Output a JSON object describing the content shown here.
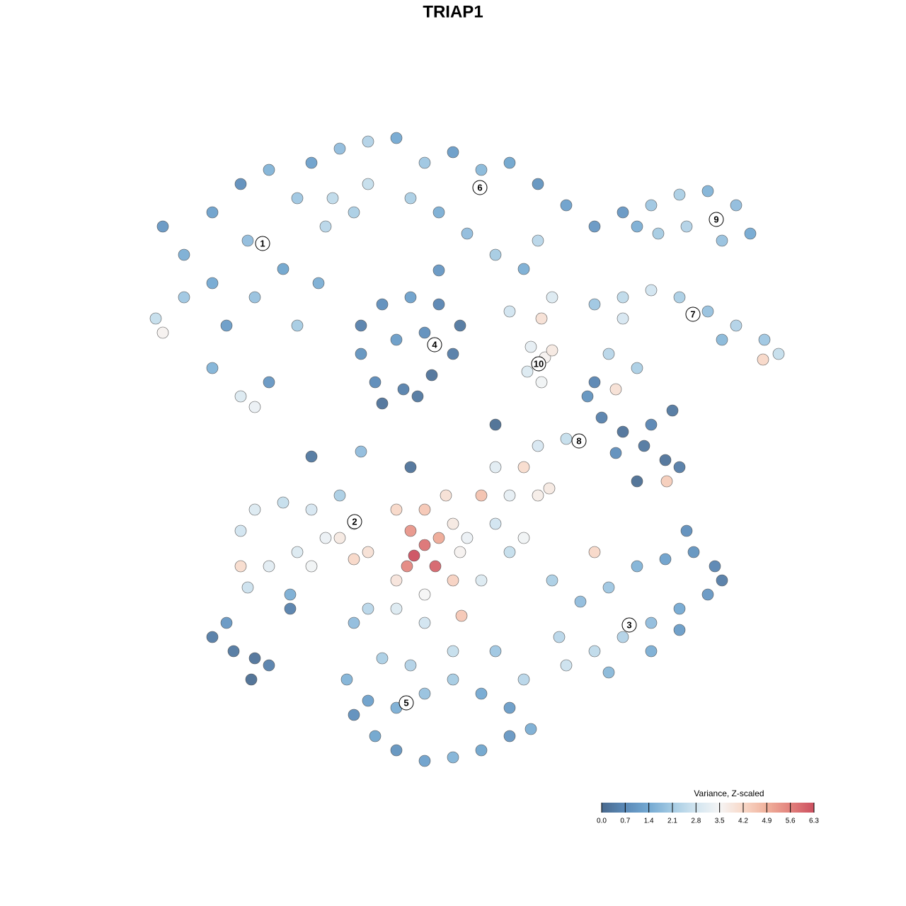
{
  "chart_data": {
    "type": "scatter",
    "title": "TRIAP1",
    "xlim": [
      0,
      1280
    ],
    "ylim": [
      1280,
      0
    ],
    "x": [
      230,
      260,
      300,
      340,
      380,
      420,
      460,
      500,
      350,
      300,
      260,
      220,
      320,
      360,
      400,
      300,
      340,
      360,
      380,
      420,
      450,
      230,
      440,
      480,
      520,
      560,
      600,
      640,
      680,
      720,
      760,
      800,
      840,
      520,
      580,
      620,
      660,
      700,
      760,
      470,
      880,
      920,
      960,
      1000,
      1040,
      1060,
      1020,
      970,
      930,
      900,
      840,
      880,
      920,
      960,
      1000,
      1040,
      1080,
      1100,
      1020,
      880,
      860,
      900,
      780,
      720,
      1078,
      510,
      540,
      580,
      620,
      650,
      640,
      610,
      570,
      530,
      510,
      560,
      600,
      590,
      540,
      750,
      770,
      745,
      765,
      780,
      765,
      830,
      850,
      880,
      910,
      940,
      960,
      900,
      920,
      950,
      870,
      840,
      870,
      942,
      800,
      760,
      340,
      360,
      400,
      440,
      480,
      500,
      520,
      500,
      460,
      420,
      380,
      340,
      350,
      410,
      440,
      480,
      410,
      560,
      580,
      600,
      585,
      615,
      575,
      620,
      600,
      630,
      640,
      650,
      560,
      600,
      640,
      680,
      660,
      680,
      700,
      720,
      740,
      760,
      700,
      740,
      720,
      560,
      600,
      520,
      652,
      776,
      840,
      780,
      820,
      860,
      900,
      940,
      980,
      1010,
      1000,
      960,
      920,
      880,
      840,
      800,
      790,
      860,
      920,
      960,
      1020,
      970,
      490,
      520,
      560,
      600,
      640,
      680,
      720,
      750,
      720,
      680,
      640,
      600,
      560,
      530,
      500,
      580,
      640,
      700,
      540,
      500,
      740,
      300,
      330,
      360,
      355,
      380,
      320,
      440,
      510,
      580,
      700,
      620,
      740
    ],
    "y": [
      320,
      360,
      300,
      260,
      240,
      280,
      320,
      300,
      340,
      400,
      420,
      450,
      460,
      420,
      380,
      520,
      560,
      575,
      540,
      460,
      400,
      470,
      230,
      210,
      200,
      195,
      230,
      215,
      240,
      230,
      260,
      290,
      320,
      260,
      280,
      300,
      330,
      360,
      340,
      280,
      300,
      290,
      275,
      270,
      290,
      330,
      340,
      320,
      330,
      320,
      430,
      420,
      410,
      420,
      440,
      460,
      480,
      500,
      480,
      450,
      500,
      520,
      420,
      440,
      508,
      460,
      430,
      420,
      430,
      460,
      500,
      530,
      550,
      540,
      500,
      480,
      470,
      560,
      570,
      490,
      505,
      525,
      540,
      495,
      450,
      560,
      590,
      610,
      630,
      650,
      660,
      680,
      600,
      580,
      640,
      540,
      550,
      680,
      620,
      630,
      750,
      720,
      710,
      720,
      700,
      740,
      780,
      790,
      760,
      780,
      800,
      800,
      830,
      840,
      800,
      760,
      860,
      720,
      750,
      770,
      785,
      800,
      800,
      760,
      720,
      700,
      740,
      780,
      820,
      840,
      820,
      700,
      760,
      820,
      740,
      700,
      760,
      700,
      660,
      660,
      780,
      860,
      880,
      860,
      870,
      690,
      780,
      820,
      850,
      830,
      800,
      790,
      780,
      800,
      840,
      860,
      880,
      900,
      920,
      940,
      900,
      950,
      920,
      890,
      820,
      750,
      960,
      990,
      1000,
      980,
      960,
      980,
      1000,
      1030,
      1040,
      1060,
      1070,
      1075,
      1060,
      1040,
      1010,
      940,
      920,
      920,
      930,
      880,
      960,
      900,
      920,
      930,
      960,
      940,
      880,
      645,
      638,
      660,
      600,
      382,
      380
    ],
    "values": [
      1.0,
      1.5,
      1.2,
      0.8,
      1.6,
      2.0,
      2.4,
      2.2,
      1.8,
      1.4,
      2.0,
      2.6,
      1.1,
      1.9,
      1.3,
      1.6,
      3.0,
      3.3,
      1.0,
      2.1,
      1.5,
      3.6,
      1.2,
      1.8,
      2.3,
      1.4,
      2.0,
      1.1,
      1.7,
      1.3,
      0.9,
      1.2,
      1.0,
      2.6,
      2.2,
      1.5,
      1.8,
      2.1,
      2.4,
      2.5,
      1.0,
      2.0,
      2.2,
      1.6,
      1.8,
      1.4,
      1.9,
      2.3,
      2.1,
      1.5,
      2.0,
      2.5,
      2.8,
      2.2,
      1.9,
      2.3,
      2.0,
      2.6,
      1.7,
      2.9,
      2.4,
      2.2,
      3.0,
      2.8,
      4.2,
      0.5,
      0.8,
      1.2,
      0.6,
      0.3,
      0.4,
      0.2,
      0.5,
      0.7,
      0.9,
      1.1,
      0.8,
      0.3,
      0.2,
      3.2,
      3.6,
      3.0,
      3.4,
      3.8,
      4.0,
      0.9,
      0.5,
      0.2,
      0.3,
      0.2,
      0.4,
      0.1,
      0.6,
      0.3,
      0.8,
      0.6,
      4.0,
      4.4,
      2.6,
      2.9,
      2.8,
      3.0,
      2.6,
      2.9,
      2.2,
      3.2,
      4.0,
      4.2,
      3.3,
      3.0,
      3.1,
      4.1,
      2.7,
      1.5,
      3.4,
      3.8,
      0.5,
      4.2,
      5.3,
      5.8,
      6.3,
      6.0,
      5.5,
      5.0,
      4.5,
      4.0,
      3.8,
      3.6,
      3.9,
      3.5,
      4.3,
      4.6,
      3.3,
      3.0,
      2.8,
      3.2,
      3.4,
      3.7,
      3.1,
      4.1,
      2.6,
      3.0,
      2.8,
      2.4,
      4.5,
      3.8,
      4.2,
      2.2,
      1.8,
      2.0,
      1.6,
      1.2,
      0.9,
      0.6,
      1.0,
      1.4,
      1.8,
      2.3,
      2.5,
      2.7,
      2.4,
      1.7,
      1.5,
      1.1,
      0.4,
      0.8,
      1.6,
      1.2,
      1.5,
      1.9,
      2.1,
      1.4,
      1.1,
      1.5,
      1.0,
      1.3,
      1.6,
      1.2,
      0.9,
      1.3,
      0.8,
      2.3,
      2.6,
      2.0,
      2.2,
      1.8,
      2.4,
      0.4,
      0.3,
      0.2,
      0.1,
      0.5,
      1.0,
      0.3,
      1.8,
      0.2,
      0.1,
      1.0,
      1.5
    ],
    "annotations": [
      {
        "label": "1",
        "x": 371,
        "y": 344
      },
      {
        "label": "2",
        "x": 501,
        "y": 737
      },
      {
        "label": "3",
        "x": 889,
        "y": 883
      },
      {
        "label": "4",
        "x": 614,
        "y": 487
      },
      {
        "label": "5",
        "x": 574,
        "y": 993
      },
      {
        "label": "6",
        "x": 678,
        "y": 265
      },
      {
        "label": "7",
        "x": 979,
        "y": 444
      },
      {
        "label": "8",
        "x": 818,
        "y": 623
      },
      {
        "label": "9",
        "x": 1012,
        "y": 310
      },
      {
        "label": "10",
        "x": 761,
        "y": 514
      }
    ],
    "colorbar": {
      "title": "Variance, Z-scaled",
      "ticks": [
        {
          "value": 0,
          "label": "0.0"
        },
        0.7,
        1.4,
        2.1,
        2.8,
        3.5,
        4.2,
        4.9,
        5.6,
        6.3
      ],
      "colors": [
        "#4a6a8e",
        "#5b8ab8",
        "#74a9d2",
        "#a5cbe3",
        "#d2e5f0",
        "#f5f5f5",
        "#f8d8c8",
        "#f0b19c",
        "#e2817c",
        "#cc5060"
      ]
    }
  }
}
